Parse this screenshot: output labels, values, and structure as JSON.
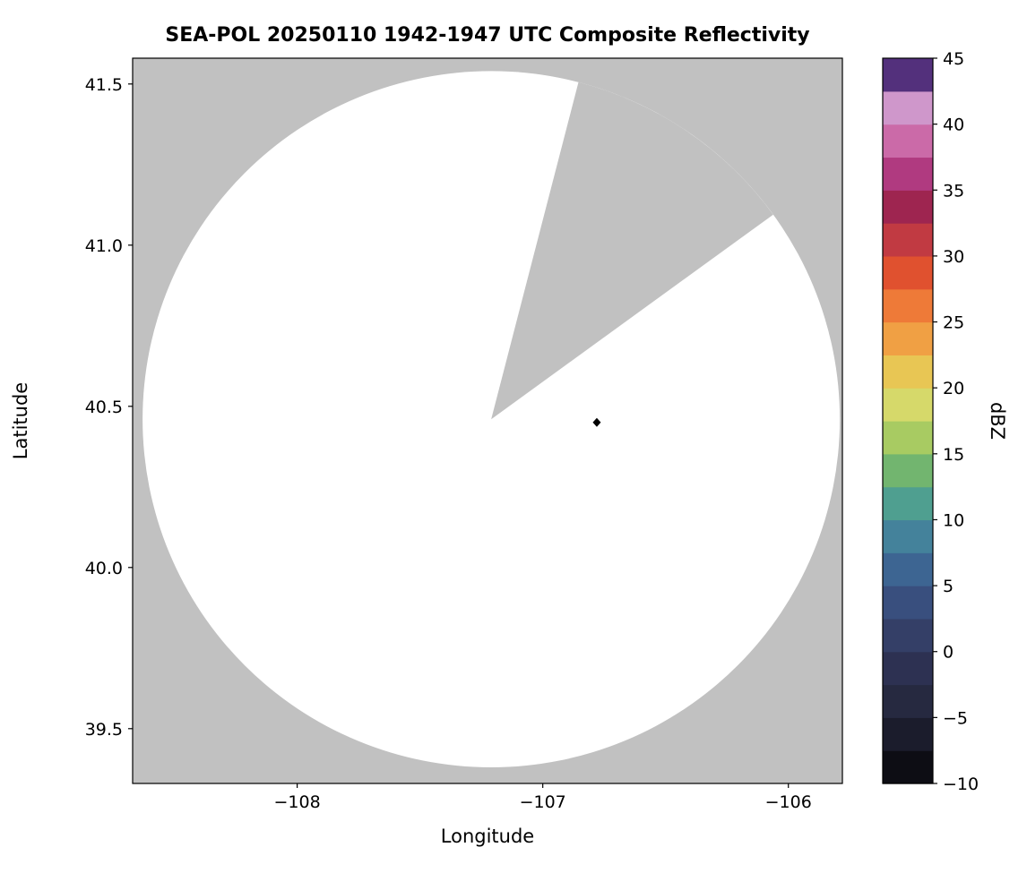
{
  "chart_data": {
    "type": "radar_coverage_map",
    "title": "SEA-POL 20250110 1942-1947 UTC Composite Reflectivity",
    "xlabel": "Longitude",
    "ylabel": "Latitude",
    "xlim": [
      -108.67,
      -105.78
    ],
    "ylim": [
      39.33,
      41.58
    ],
    "xticks": [
      {
        "v": -108,
        "label": "−108"
      },
      {
        "v": -107,
        "label": "−107"
      },
      {
        "v": -106,
        "label": "−106"
      }
    ],
    "yticks": [
      {
        "v": 39.5,
        "label": "39.5"
      },
      {
        "v": 40.0,
        "label": "40.0"
      },
      {
        "v": 40.5,
        "label": "40.5"
      },
      {
        "v": 41.0,
        "label": "41.0"
      },
      {
        "v": 41.5,
        "label": "41.5"
      }
    ],
    "nodata_color": "#c1c1c1",
    "coverage_circle": {
      "center_lon": -107.21,
      "center_lat": 40.46,
      "radius_deg_lat": 1.08,
      "fill": "#ffffff"
    },
    "blocked_sector": {
      "azimuth_start_deg": 14.5,
      "azimuth_end_deg": 54,
      "fill": "#c1c1c1"
    },
    "radar_marker": {
      "lon": -106.78,
      "lat": 40.45,
      "shape": "diamond",
      "color": "#000000"
    },
    "colorbar": {
      "label": "dBZ",
      "min": -10,
      "max": 45,
      "ticks": [
        {
          "v": 45,
          "label": "45"
        },
        {
          "v": 40,
          "label": "40"
        },
        {
          "v": 35,
          "label": "35"
        },
        {
          "v": 30,
          "label": "30"
        },
        {
          "v": 25,
          "label": "25"
        },
        {
          "v": 20,
          "label": "20"
        },
        {
          "v": 15,
          "label": "15"
        },
        {
          "v": 10,
          "label": "10"
        },
        {
          "v": 5,
          "label": "5"
        },
        {
          "v": 0,
          "label": "0"
        },
        {
          "v": -5,
          "label": "−5"
        },
        {
          "v": -10,
          "label": "−10"
        }
      ],
      "segment_step": 2.5,
      "segment_colors_bottom_to_top": [
        "#0d0d14",
        "#1b1c2c",
        "#262940",
        "#2d3152",
        "#343f67",
        "#394f7e",
        "#3d6592",
        "#44829b",
        "#4f9f90",
        "#72b56f",
        "#a8cb62",
        "#d6d96a",
        "#e8c654",
        "#f0a044",
        "#ee7a38",
        "#e0512f",
        "#c13a42",
        "#9e2550",
        "#b03a80",
        "#cb6aa8",
        "#cf97cb",
        "#53307c"
      ]
    }
  }
}
